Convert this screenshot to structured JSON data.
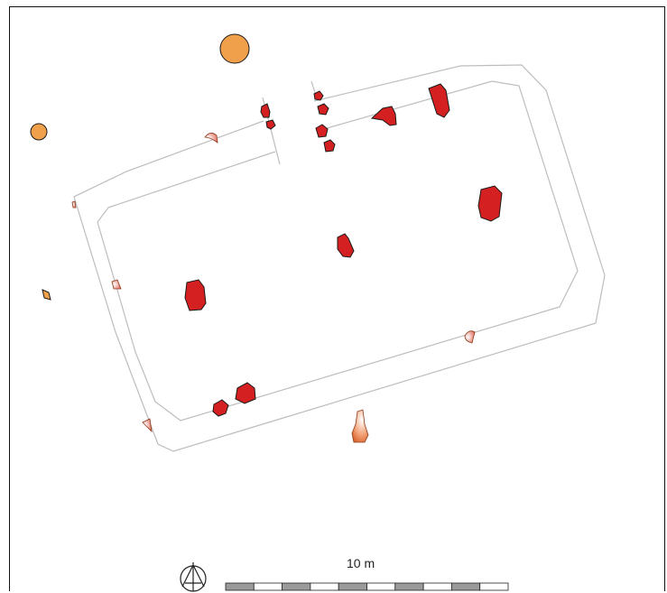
{
  "scale_bar": {
    "label": "10 m",
    "segments": 10,
    "colors": [
      "#9a9a9a",
      "#ffffff"
    ]
  },
  "north_arrow": {
    "icon": "north-arrow-icon"
  },
  "feature_colors": {
    "excavated_pit": "#d42020",
    "truncated_pit": "#f0a070",
    "external_pit": "#f0a04a",
    "outline": "#1a1a1a",
    "wall_line": "#bdbdbd"
  }
}
